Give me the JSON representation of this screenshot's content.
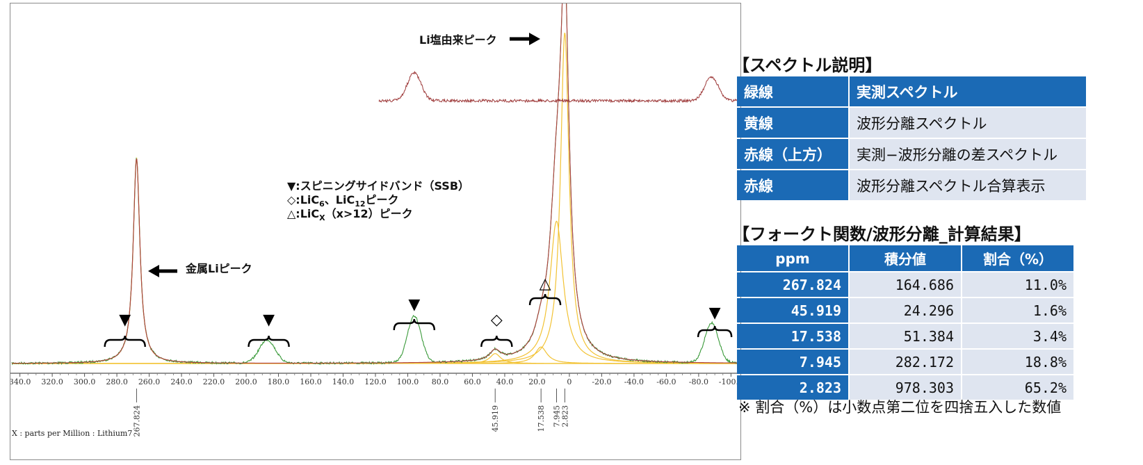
{
  "chart_data": {
    "type": "line",
    "title": "",
    "xlabel": "X : parts per Million : Lithium7",
    "ylabel": "",
    "xlim": [
      345,
      -105
    ],
    "reversed_x": true,
    "ticks": [
      "340.0",
      "320.0",
      "300.0",
      "280.0",
      "260.0",
      "240.0",
      "220.0",
      "200.0",
      "180.0",
      "160.0",
      "140.0",
      "120.0",
      "100.0",
      "80.0",
      "60.0",
      "40.0",
      "20.0",
      "0",
      "-20.0",
      "-40.0",
      "-60.0",
      "-80.0",
      "-100.0"
    ],
    "tick_values": [
      340,
      320,
      300,
      280,
      260,
      240,
      220,
      200,
      180,
      160,
      140,
      120,
      100,
      80,
      60,
      40,
      20,
      0,
      -20,
      -40,
      -60,
      -80,
      -100
    ],
    "peak_labels": [
      "267.824",
      "45.919",
      "17.538",
      "7.945",
      "2.823"
    ],
    "peak_values": [
      267.824,
      45.919,
      17.538,
      7.945,
      2.823
    ],
    "series": [
      {
        "name": "緑線",
        "color": "#3a9a3a",
        "desc": "実測スペクトル"
      },
      {
        "name": "黄線",
        "color": "#f2c233",
        "desc": "波形分離スペクトル"
      },
      {
        "name": "赤線（上方）",
        "color": "#9e3a3a",
        "desc": "実測−波形分離の差スペクトル"
      },
      {
        "name": "赤線",
        "color": "#b04040",
        "desc": "波形分離スペクトル合算表示"
      }
    ],
    "peaks": [
      {
        "ppm": 267.824,
        "height": 0.62,
        "width": 2.5
      },
      {
        "ppm": 45.919,
        "height": 0.03,
        "width": 4
      },
      {
        "ppm": 17.538,
        "height": 0.05,
        "width": 4.5
      },
      {
        "ppm": 7.945,
        "height": 0.43,
        "width": 5
      },
      {
        "ppm": 2.823,
        "height": 1.0,
        "width": 3.2
      }
    ],
    "ssb": [
      {
        "ppm": 187,
        "height": 0.07,
        "width": 7
      },
      {
        "ppm": 96,
        "height": 0.14,
        "width": 6
      },
      {
        "ppm": -88,
        "height": 0.12,
        "width": 6
      }
    ]
  },
  "annotations": {
    "li_salt": "Li塩由来ピーク",
    "metal_li": "金属Liピーク",
    "legend1": "▼:スピニングサイドバンド（SSB）",
    "legend2_a": "◇:LiC",
    "legend2_b": "6",
    "legend2_c": "、LiC",
    "legend2_d": "12",
    "legend2_e": "ピーク",
    "legend3_a": "△:LiC",
    "legend3_b": "X",
    "legend3_c": "（x>12）ピーク",
    "ssb_marker": "▼",
    "lic_marker": "◇",
    "licx_marker": "△"
  },
  "spectrum_table": {
    "title": "【スペクトル説明】",
    "rows": [
      {
        "key": "緑線",
        "value": "実測スペクトル"
      },
      {
        "key": "黄線",
        "value": "波形分離スペクトル"
      },
      {
        "key": "赤線（上方）",
        "value": "実測−波形分離の差スペクトル"
      },
      {
        "key": "赤線",
        "value": "波形分離スペクトル合算表示"
      }
    ]
  },
  "result_table": {
    "title": "【フォークト関数/波形分離_計算結果】",
    "headers": [
      "ppm",
      "積分値",
      "割合（%）"
    ],
    "rows": [
      {
        "ppm": "267.824",
        "integral": "164.686",
        "ratio": "11.0%"
      },
      {
        "ppm": "45.919",
        "integral": "24.296",
        "ratio": "1.6%"
      },
      {
        "ppm": "17.538",
        "integral": "51.384",
        "ratio": "3.4%"
      },
      {
        "ppm": "7.945",
        "integral": "282.172",
        "ratio": "18.8%"
      },
      {
        "ppm": "2.823",
        "integral": "978.303",
        "ratio": "65.2%"
      }
    ],
    "note": "※ 割合（%）は小数点第二位を四捨五入した数値"
  }
}
